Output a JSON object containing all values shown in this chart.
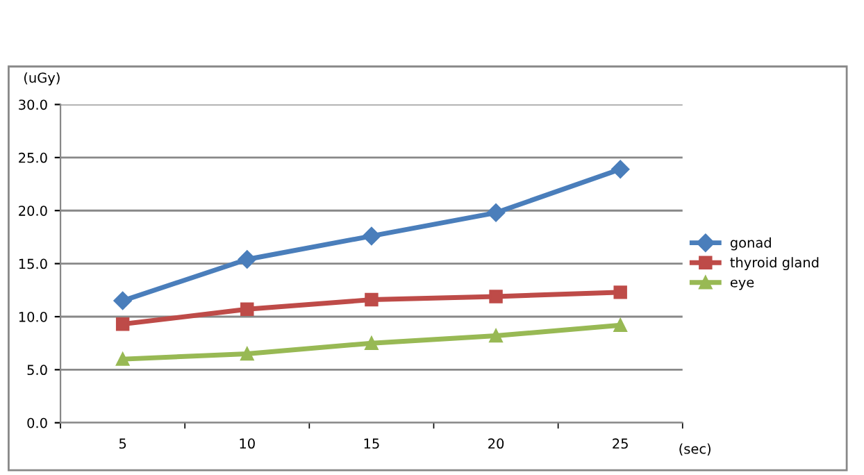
{
  "chart_data": {
    "type": "line",
    "xlabel": "(sec)",
    "ylabel": "(uGy)",
    "categories": [
      "5",
      "10",
      "15",
      "20",
      "25"
    ],
    "series": [
      {
        "name": "gonad",
        "color": "#4a7ebb",
        "marker": "diamond",
        "values": [
          11.5,
          15.4,
          17.6,
          19.8,
          23.9
        ]
      },
      {
        "name": "thyroid gland",
        "color": "#be4b48",
        "marker": "square",
        "values": [
          9.3,
          10.7,
          11.6,
          11.9,
          12.3
        ]
      },
      {
        "name": "eye",
        "color": "#98b954",
        "marker": "triangle",
        "values": [
          6.0,
          6.5,
          7.5,
          8.2,
          9.2
        ]
      }
    ],
    "ylim": [
      0,
      30
    ],
    "yticks": [
      {
        "value": 0,
        "label": "0.0"
      },
      {
        "value": 5,
        "label": "5.0"
      },
      {
        "value": 10,
        "label": "10.0"
      },
      {
        "value": 15,
        "label": "15.0"
      },
      {
        "value": 20,
        "label": "20.0"
      },
      {
        "value": 25,
        "label": "25.0"
      },
      {
        "value": 30,
        "label": "30.0"
      }
    ],
    "grid": "y",
    "legend": "right"
  }
}
